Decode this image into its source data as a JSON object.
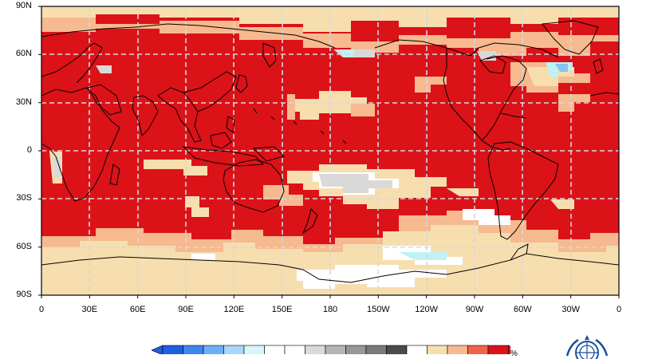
{
  "map": {
    "y_ticks": [
      "90N",
      "60N",
      "30N",
      "0",
      "30S",
      "60S",
      "90S"
    ],
    "x_ticks": [
      "0",
      "30E",
      "60E",
      "90E",
      "120E",
      "150E",
      "180",
      "150W",
      "120W",
      "90W",
      "60W",
      "30W",
      "0"
    ],
    "colors": {
      "dark_red": "#dc1219",
      "red_orange": "#f0654a",
      "peach": "#f7b98f",
      "wheat": "#f7deae",
      "white": "#ffffff",
      "light_gray": "#d9d9d9",
      "light_cyan": "#bdf3f7",
      "light_blue": "#82c6f2",
      "coastline": "#000000",
      "grid": "#d8d8d8"
    }
  },
  "legend": {
    "unit": "%",
    "swatches": [
      "#1f5ee0",
      "#3d86ee",
      "#6eaef5",
      "#a7d6fb",
      "#d8f5f8",
      "#ffffff",
      "#ffffff",
      "#d9d9d9",
      "#b5b5b5",
      "#989898",
      "#7a7a7a",
      "#4b4b4b",
      "#ffffff",
      "#f7deae",
      "#f7b98f",
      "#f0654a",
      "#dc1219"
    ]
  },
  "logo": {
    "icon": "wmo-emblem-icon"
  }
}
